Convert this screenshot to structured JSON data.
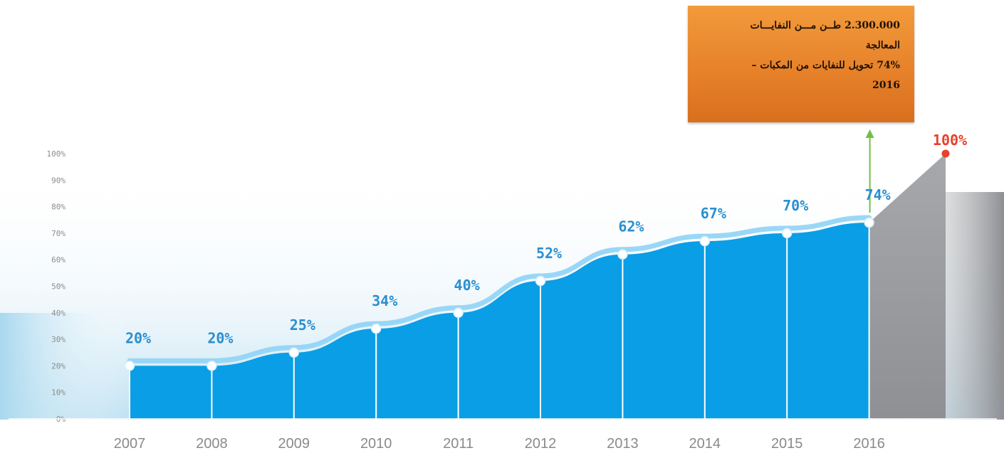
{
  "callout": {
    "lines": [
      "2.300.000 طــن مـــن النفايـــات",
      "المعالجة",
      "74% تحويل للنفايات من المكبات –",
      "2016"
    ]
  },
  "colors": {
    "area": "#0a9ee6",
    "line": "#8fd3f6",
    "label": "#2a8fd0",
    "target": "#e9402b",
    "gray": "#9d9ea2",
    "arrow": "#72c046",
    "callout": "#eb8a2f"
  },
  "chart_data": {
    "type": "area",
    "x": [
      "2007",
      "2008",
      "2009",
      "2010",
      "2011",
      "2012",
      "2013",
      "2014",
      "2015",
      "2016"
    ],
    "values": [
      20,
      20,
      25,
      34,
      40,
      52,
      62,
      67,
      70,
      74
    ],
    "value_labels": [
      "20%",
      "20%",
      "25%",
      "34%",
      "40%",
      "52%",
      "62%",
      "67%",
      "70%",
      "74%"
    ],
    "target": {
      "value": 100,
      "label": "100%"
    },
    "yticks": [
      "0%",
      "10%",
      "20%",
      "30%",
      "40%",
      "50%",
      "60%",
      "70%",
      "80%",
      "90%",
      "100%"
    ],
    "ylim": [
      0,
      100
    ],
    "grid": false
  }
}
